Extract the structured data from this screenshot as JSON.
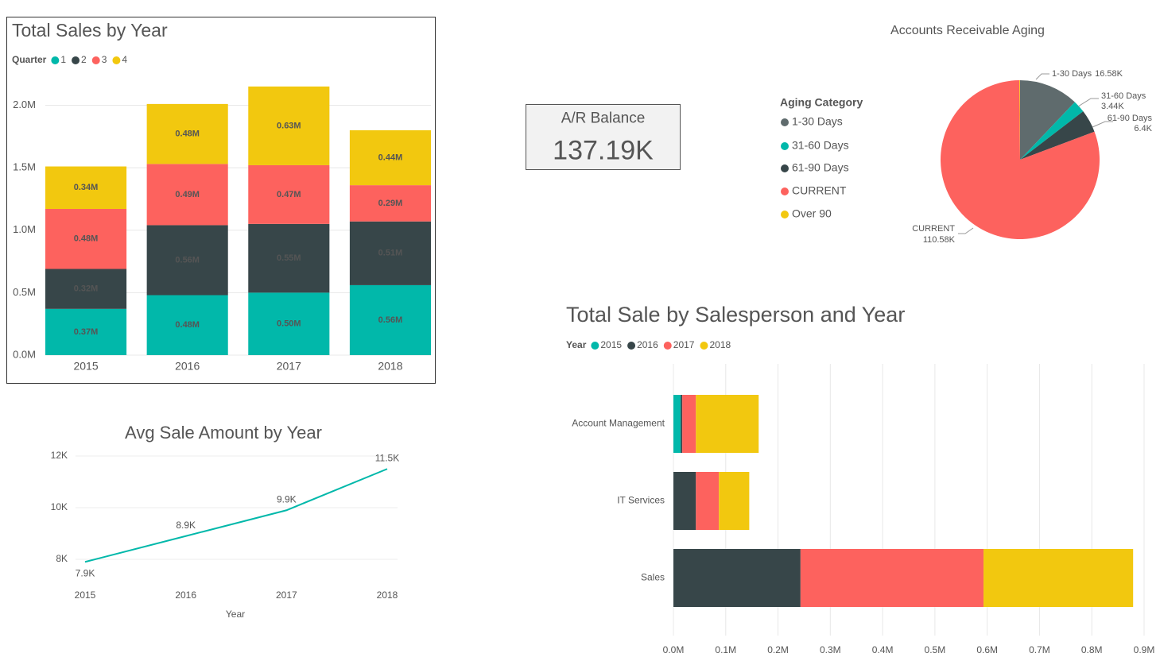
{
  "chart_data": [
    {
      "type": "bar",
      "stacked": true,
      "horizontal": false,
      "title": "Total Sales by Year",
      "title_color": "#218C8D",
      "legend_title": "Quarter",
      "categories": [
        "2015",
        "2016",
        "2017",
        "2018"
      ],
      "series": [
        {
          "name": "1",
          "color": "#01B8AA",
          "values": [
            0.37,
            0.48,
            0.5,
            0.56
          ],
          "value_labels": [
            "0.37M",
            "0.48M",
            "0.50M",
            "0.56M"
          ]
        },
        {
          "name": "2",
          "color": "#374649",
          "values": [
            0.32,
            0.56,
            0.55,
            0.51
          ],
          "value_labels": [
            "0.32M",
            "0.56M",
            "0.55M",
            "0.51M"
          ]
        },
        {
          "name": "3",
          "color": "#FD625E",
          "values": [
            0.48,
            0.49,
            0.47,
            0.29
          ],
          "value_labels": [
            "0.48M",
            "0.49M",
            "0.47M",
            "0.29M"
          ]
        },
        {
          "name": "4",
          "color": "#F2C80F",
          "values": [
            0.34,
            0.48,
            0.63,
            0.44
          ],
          "value_labels": [
            "0.34M",
            "0.48M",
            "0.63M",
            "0.44M"
          ]
        }
      ],
      "ylim": [
        0,
        2.2
      ],
      "yticks": [
        {
          "value": 0,
          "label": "0.0M"
        },
        {
          "value": 0.5,
          "label": "0.5M"
        },
        {
          "value": 1.0,
          "label": "1.0M"
        },
        {
          "value": 1.5,
          "label": "1.5M"
        },
        {
          "value": 2.0,
          "label": "2.0M"
        }
      ],
      "grid": true
    },
    {
      "type": "line",
      "title": "Avg Sale Amount by Year",
      "x_label": "Year",
      "color": "#01B8AA",
      "categories": [
        "2015",
        "2016",
        "2017",
        "2018"
      ],
      "values": [
        7900,
        8900,
        9900,
        11500
      ],
      "value_labels": [
        "7.9K",
        "8.9K",
        "9.9K",
        "11.5K"
      ],
      "ylim": [
        7000,
        12000
      ],
      "yticks": [
        {
          "value": 8000,
          "label": "8K"
        },
        {
          "value": 10000,
          "label": "10K"
        },
        {
          "value": 12000,
          "label": "12K"
        }
      ],
      "grid": true
    },
    {
      "type": "card",
      "title": "A/R Balance",
      "value": 137190,
      "value_label": "137.19K"
    },
    {
      "type": "pie",
      "title": "Accounts Receivable Aging",
      "legend_title": "Aging Category",
      "categories": [
        "1-30 Days",
        "31-60 Days",
        "61-90 Days",
        "CURRENT",
        "Over 90"
      ],
      "values": [
        16580,
        3440,
        6400,
        110580,
        190
      ],
      "value_labels": [
        "16.58K",
        "3.44K",
        "6.4K",
        "110.58K",
        null
      ],
      "colors": [
        "#5F6B6D",
        "#01B8AA",
        "#374649",
        "#FD625E",
        "#F2C80F"
      ]
    },
    {
      "type": "bar",
      "stacked": true,
      "horizontal": true,
      "title": "Total Sale by Salesperson and Year",
      "title_color": "#FD625E",
      "legend_title": "Year",
      "categories": [
        "Account Management",
        "IT Services",
        "Sales"
      ],
      "series": [
        {
          "name": "2015",
          "color": "#01B8AA",
          "values": [
            0.014,
            0,
            0
          ]
        },
        {
          "name": "2016",
          "color": "#374649",
          "values": [
            0.003,
            0.043,
            0.243
          ]
        },
        {
          "name": "2017",
          "color": "#FD625E",
          "values": [
            0.026,
            0.044,
            0.35
          ]
        },
        {
          "name": "2018",
          "color": "#F2C80F",
          "values": [
            0.12,
            0.058,
            0.286
          ]
        }
      ],
      "xlim": [
        0,
        0.9
      ],
      "xticks": [
        {
          "value": 0,
          "label": "0.0M"
        },
        {
          "value": 0.1,
          "label": "0.1M"
        },
        {
          "value": 0.2,
          "label": "0.2M"
        },
        {
          "value": 0.3,
          "label": "0.3M"
        },
        {
          "value": 0.4,
          "label": "0.4M"
        },
        {
          "value": 0.5,
          "label": "0.5M"
        },
        {
          "value": 0.6,
          "label": "0.6M"
        },
        {
          "value": 0.7,
          "label": "0.7M"
        },
        {
          "value": 0.8,
          "label": "0.8M"
        },
        {
          "value": 0.9,
          "label": "0.9M"
        }
      ],
      "grid": true
    }
  ]
}
